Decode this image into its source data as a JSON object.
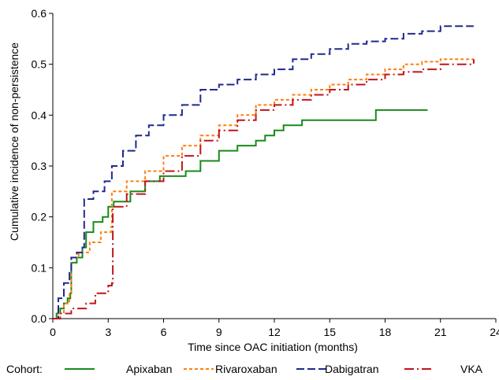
{
  "chart_data": {
    "type": "line",
    "step": true,
    "xlabel": "Time since OAC initiation (months)",
    "ylabel": "Cumulative incidence of non-persistence",
    "xlim": [
      0,
      24
    ],
    "ylim": [
      0,
      0.6
    ],
    "xticks": [
      0,
      3,
      6,
      9,
      12,
      15,
      18,
      21,
      24
    ],
    "yticks": [
      0.0,
      0.1,
      0.2,
      0.3,
      0.4,
      0.5,
      0.6
    ],
    "ytick_labels": [
      "0.0",
      "0.1",
      "0.2",
      "0.3",
      "0.4",
      "0.5",
      "0.6"
    ],
    "grid": false,
    "legend": {
      "position": "bottom",
      "title": "Cohort:"
    },
    "series": [
      {
        "name": "Apixaban",
        "color": "#1a8a1a",
        "dash": "solid",
        "points": [
          [
            0,
            0
          ],
          [
            0.2,
            0.01
          ],
          [
            0.4,
            0.02
          ],
          [
            0.6,
            0.03
          ],
          [
            0.8,
            0.04
          ],
          [
            0.95,
            0.05
          ],
          [
            1.0,
            0.11
          ],
          [
            1.3,
            0.12
          ],
          [
            1.6,
            0.14
          ],
          [
            1.8,
            0.17
          ],
          [
            2.2,
            0.19
          ],
          [
            2.7,
            0.2
          ],
          [
            3.0,
            0.22
          ],
          [
            3.3,
            0.23
          ],
          [
            4.2,
            0.25
          ],
          [
            5.0,
            0.27
          ],
          [
            5.8,
            0.28
          ],
          [
            6.5,
            0.28
          ],
          [
            7.2,
            0.29
          ],
          [
            8.0,
            0.31
          ],
          [
            9.0,
            0.33
          ],
          [
            10.0,
            0.34
          ],
          [
            11.0,
            0.35
          ],
          [
            11.5,
            0.36
          ],
          [
            12.0,
            0.37
          ],
          [
            12.5,
            0.38
          ],
          [
            13.5,
            0.39
          ],
          [
            17.5,
            0.39
          ],
          [
            17.5,
            0.41
          ],
          [
            20.3,
            0.41
          ]
        ]
      },
      {
        "name": "Rivaroxaban",
        "color": "#ff7f0e",
        "dash": "short",
        "points": [
          [
            0,
            0
          ],
          [
            0.3,
            0.01
          ],
          [
            0.6,
            0.03
          ],
          [
            0.9,
            0.05
          ],
          [
            1.0,
            0.12
          ],
          [
            1.4,
            0.13
          ],
          [
            2.0,
            0.15
          ],
          [
            2.6,
            0.17
          ],
          [
            3.15,
            0.18
          ],
          [
            3.2,
            0.25
          ],
          [
            4.0,
            0.27
          ],
          [
            5.0,
            0.29
          ],
          [
            6.0,
            0.32
          ],
          [
            7.0,
            0.34
          ],
          [
            8.0,
            0.36
          ],
          [
            9.0,
            0.38
          ],
          [
            10.0,
            0.4
          ],
          [
            11.0,
            0.42
          ],
          [
            12.0,
            0.43
          ],
          [
            13.0,
            0.44
          ],
          [
            14.0,
            0.45
          ],
          [
            15.0,
            0.46
          ],
          [
            16.0,
            0.47
          ],
          [
            17.0,
            0.48
          ],
          [
            18.0,
            0.49
          ],
          [
            19.0,
            0.5
          ],
          [
            20.0,
            0.505
          ],
          [
            21.0,
            0.51
          ],
          [
            22.8,
            0.51
          ]
        ]
      },
      {
        "name": "Dabigatran",
        "color": "#1f2a8c",
        "dash": "long",
        "points": [
          [
            0,
            0
          ],
          [
            0.3,
            0.04
          ],
          [
            0.6,
            0.07
          ],
          [
            0.9,
            0.09
          ],
          [
            1.0,
            0.12
          ],
          [
            1.3,
            0.13
          ],
          [
            1.6,
            0.14
          ],
          [
            1.7,
            0.235
          ],
          [
            2.2,
            0.25
          ],
          [
            2.8,
            0.27
          ],
          [
            3.2,
            0.3
          ],
          [
            3.8,
            0.33
          ],
          [
            4.5,
            0.36
          ],
          [
            5.2,
            0.38
          ],
          [
            6.0,
            0.4
          ],
          [
            7.0,
            0.42
          ],
          [
            8.0,
            0.45
          ],
          [
            9.0,
            0.46
          ],
          [
            10.0,
            0.47
          ],
          [
            11.0,
            0.48
          ],
          [
            12.0,
            0.49
          ],
          [
            13.0,
            0.51
          ],
          [
            14.0,
            0.52
          ],
          [
            15.0,
            0.53
          ],
          [
            16.0,
            0.54
          ],
          [
            17.0,
            0.545
          ],
          [
            18.0,
            0.55
          ],
          [
            19.0,
            0.56
          ],
          [
            20.0,
            0.565
          ],
          [
            21.0,
            0.575
          ],
          [
            22.8,
            0.575
          ]
        ]
      },
      {
        "name": "VKA",
        "color": "#c0141c",
        "dash": "dashdot",
        "points": [
          [
            0,
            0
          ],
          [
            0.4,
            0.01
          ],
          [
            1.0,
            0.02
          ],
          [
            1.8,
            0.03
          ],
          [
            2.3,
            0.05
          ],
          [
            3.0,
            0.065
          ],
          [
            3.2,
            0.07
          ],
          [
            3.25,
            0.22
          ],
          [
            4.0,
            0.245
          ],
          [
            5.0,
            0.27
          ],
          [
            6.0,
            0.29
          ],
          [
            7.0,
            0.32
          ],
          [
            8.0,
            0.35
          ],
          [
            9.0,
            0.37
          ],
          [
            10.0,
            0.39
          ],
          [
            11.0,
            0.41
          ],
          [
            12.0,
            0.42
          ],
          [
            13.0,
            0.43
          ],
          [
            14.0,
            0.44
          ],
          [
            15.0,
            0.45
          ],
          [
            16.0,
            0.46
          ],
          [
            17.0,
            0.47
          ],
          [
            18.0,
            0.48
          ],
          [
            19.0,
            0.485
          ],
          [
            20.0,
            0.49
          ],
          [
            21.0,
            0.5
          ],
          [
            22.8,
            0.51
          ]
        ]
      }
    ]
  }
}
